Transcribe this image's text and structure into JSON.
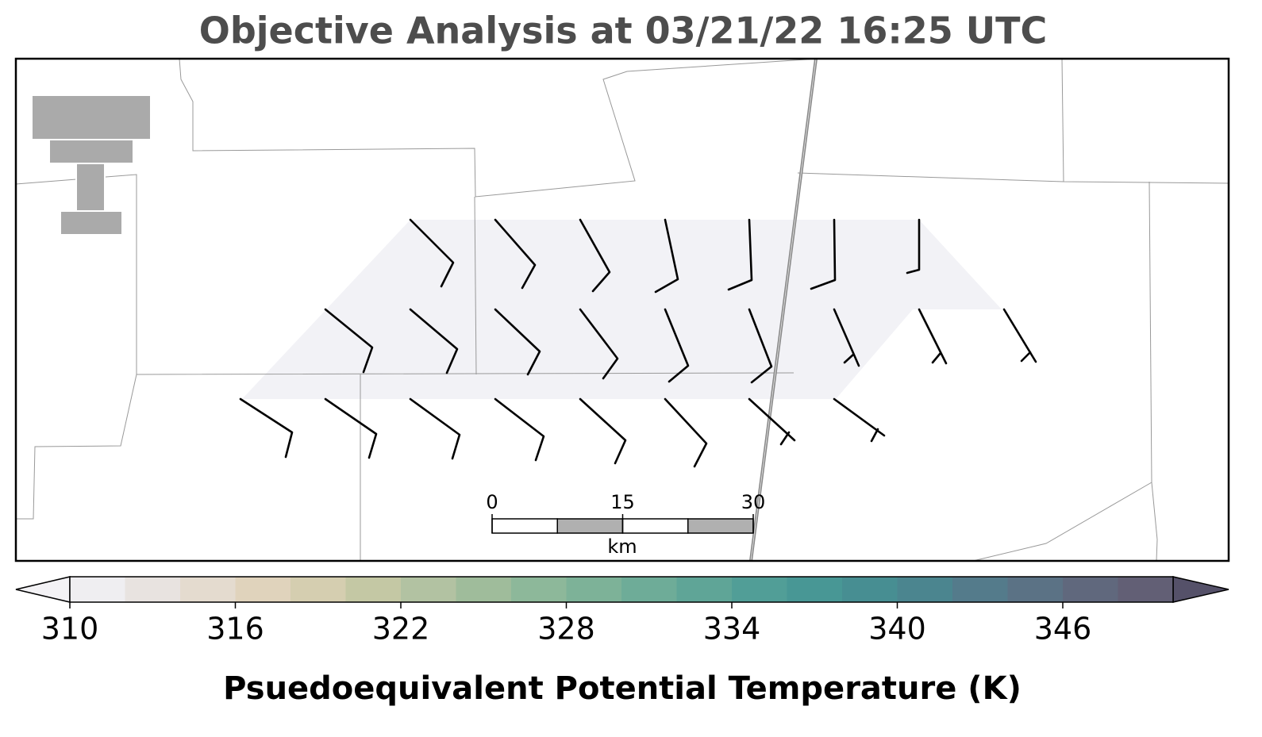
{
  "title": "Objective Analysis at 03/21/22 16:25 UTC",
  "scale_bar": {
    "ticks": [
      0,
      15,
      30
    ],
    "unit": "km"
  },
  "colorbar": {
    "label": "Psuedoequivalent Potential Temperature (K)",
    "range": [
      310,
      350
    ],
    "ticks": [
      310,
      316,
      322,
      328,
      334,
      340,
      346
    ],
    "under_color": "#f3f2f5",
    "over_color": "#555169",
    "colors": [
      "#efeef1",
      "#e8e3e0",
      "#e4dbcf",
      "#e0d3bc",
      "#d5ceb0",
      "#c4c8a4",
      "#b2c2a2",
      "#9fbc9b",
      "#8db89a",
      "#7db298",
      "#6eac98",
      "#5fa597",
      "#519e97",
      "#489795",
      "#478e92",
      "#4b858f",
      "#547b8b",
      "#5b7285",
      "#60687d",
      "#625f75"
    ]
  }
}
